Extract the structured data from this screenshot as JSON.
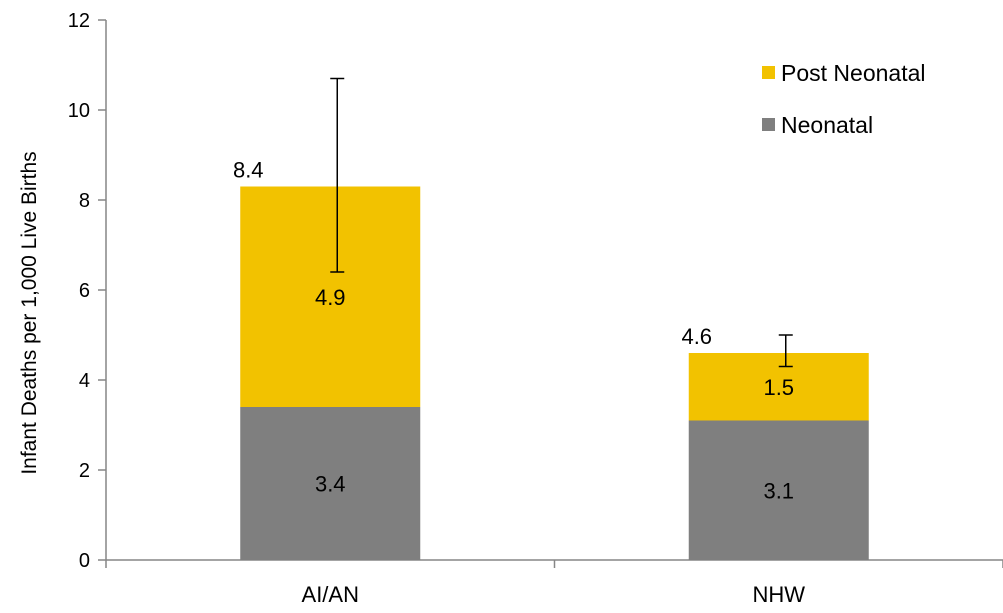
{
  "chart_data": {
    "type": "bar",
    "stacked": true,
    "categories": [
      "AI/AN",
      "NHW"
    ],
    "ylabel": "Infant Deaths per 1,000 Live Births",
    "ylim": [
      0,
      12
    ],
    "yticks": [
      0,
      2,
      4,
      6,
      8,
      10,
      12
    ],
    "grid": false,
    "legend_position": "top-right",
    "series": [
      {
        "name": "Neonatal",
        "values": [
          3.4,
          3.1
        ],
        "labels": [
          "3.4",
          "3.1"
        ],
        "color": "#7f7f7f"
      },
      {
        "name": "Post Neonatal",
        "values": [
          4.9,
          1.5
        ],
        "labels": [
          "4.9",
          "1.5"
        ],
        "color": "#f2c200"
      }
    ],
    "totals": [
      8.4,
      4.6
    ],
    "total_labels": [
      "8.4",
      "4.6"
    ],
    "error_bars": [
      {
        "low": 6.4,
        "high": 10.7
      },
      {
        "low": 4.3,
        "high": 5.0
      }
    ]
  }
}
